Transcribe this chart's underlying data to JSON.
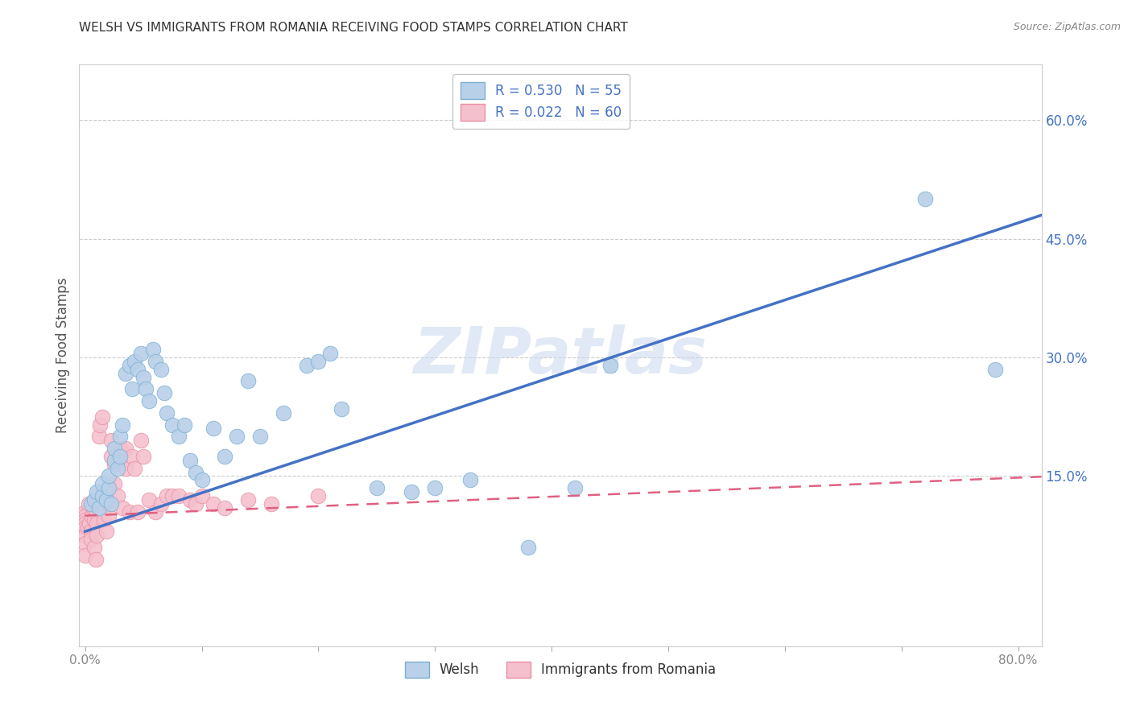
{
  "title": "WELSH VS IMMIGRANTS FROM ROMANIA RECEIVING FOOD STAMPS CORRELATION CHART",
  "source": "Source: ZipAtlas.com",
  "ylabel": "Receiving Food Stamps",
  "xlim": [
    -0.005,
    0.82
  ],
  "ylim": [
    -0.065,
    0.67
  ],
  "y_ticks_right": [
    0.15,
    0.3,
    0.45,
    0.6
  ],
  "y_tick_labels_right": [
    "15.0%",
    "30.0%",
    "45.0%",
    "60.0%"
  ],
  "x_ticks": [
    0.0,
    0.1,
    0.2,
    0.3,
    0.4,
    0.5,
    0.6,
    0.7,
    0.8
  ],
  "x_tick_labels": [
    "0.0%",
    "",
    "",
    "",
    "",
    "",
    "",
    "",
    "80.0%"
  ],
  "welsh_color": "#b8d0e8",
  "welsh_edge_color": "#7bafd4",
  "romania_color": "#f5c0ce",
  "romania_edge_color": "#e88fa5",
  "trend_welsh_color": "#4472c4",
  "trend_romania_color": "#e06080",
  "R_welsh": 0.53,
  "N_welsh": 55,
  "R_romania": 0.022,
  "N_romania": 60,
  "legend_label_welsh": "Welsh",
  "legend_label_romania": "Immigrants from Romania",
  "watermark": "ZIPatlas",
  "background_color": "#ffffff",
  "grid_color": "#cccccc",
  "welsh_x": [
    0.005,
    0.008,
    0.01,
    0.012,
    0.015,
    0.015,
    0.018,
    0.02,
    0.02,
    0.022,
    0.025,
    0.025,
    0.028,
    0.03,
    0.03,
    0.032,
    0.035,
    0.038,
    0.04,
    0.042,
    0.045,
    0.048,
    0.05,
    0.052,
    0.055,
    0.058,
    0.06,
    0.065,
    0.068,
    0.07,
    0.075,
    0.08,
    0.085,
    0.09,
    0.095,
    0.1,
    0.11,
    0.12,
    0.13,
    0.14,
    0.15,
    0.17,
    0.19,
    0.2,
    0.21,
    0.22,
    0.25,
    0.28,
    0.3,
    0.33,
    0.38,
    0.42,
    0.45,
    0.72,
    0.78
  ],
  "welsh_y": [
    0.115,
    0.12,
    0.13,
    0.11,
    0.125,
    0.14,
    0.12,
    0.135,
    0.15,
    0.115,
    0.17,
    0.185,
    0.16,
    0.175,
    0.2,
    0.215,
    0.28,
    0.29,
    0.26,
    0.295,
    0.285,
    0.305,
    0.275,
    0.26,
    0.245,
    0.31,
    0.295,
    0.285,
    0.255,
    0.23,
    0.215,
    0.2,
    0.215,
    0.17,
    0.155,
    0.145,
    0.21,
    0.175,
    0.2,
    0.27,
    0.2,
    0.23,
    0.29,
    0.295,
    0.305,
    0.235,
    0.135,
    0.13,
    0.135,
    0.145,
    0.06,
    0.135,
    0.29,
    0.5,
    0.285
  ],
  "romania_x": [
    0.0,
    0.0,
    0.0,
    0.0,
    0.0,
    0.0,
    0.0,
    0.0,
    0.002,
    0.003,
    0.004,
    0.005,
    0.005,
    0.006,
    0.007,
    0.008,
    0.008,
    0.009,
    0.01,
    0.01,
    0.01,
    0.012,
    0.013,
    0.015,
    0.015,
    0.016,
    0.018,
    0.018,
    0.02,
    0.02,
    0.022,
    0.022,
    0.025,
    0.025,
    0.028,
    0.03,
    0.03,
    0.032,
    0.035,
    0.035,
    0.038,
    0.04,
    0.042,
    0.045,
    0.048,
    0.05,
    0.055,
    0.06,
    0.065,
    0.07,
    0.075,
    0.08,
    0.09,
    0.095,
    0.1,
    0.11,
    0.12,
    0.14,
    0.16,
    0.2
  ],
  "romania_y": [
    0.105,
    0.1,
    0.095,
    0.09,
    0.085,
    0.075,
    0.065,
    0.05,
    0.085,
    0.115,
    0.09,
    0.08,
    0.07,
    0.1,
    0.11,
    0.095,
    0.06,
    0.045,
    0.105,
    0.09,
    0.075,
    0.2,
    0.215,
    0.225,
    0.105,
    0.095,
    0.12,
    0.08,
    0.115,
    0.1,
    0.195,
    0.175,
    0.165,
    0.14,
    0.125,
    0.185,
    0.17,
    0.11,
    0.185,
    0.16,
    0.105,
    0.175,
    0.16,
    0.105,
    0.195,
    0.175,
    0.12,
    0.105,
    0.115,
    0.125,
    0.125,
    0.125,
    0.12,
    0.115,
    0.125,
    0.115,
    0.11,
    0.12,
    0.115,
    0.125
  ]
}
